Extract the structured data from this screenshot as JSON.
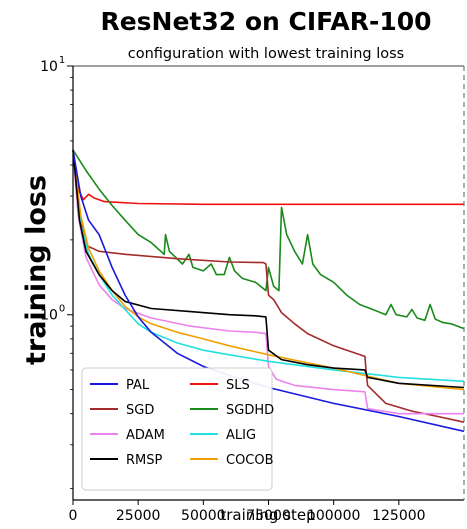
{
  "chart_data": {
    "type": "line",
    "title": "ResNet32 on CIFAR-100",
    "subtitle": "configuration with lowest training loss",
    "xlabel": "training step",
    "ylabel": "training loss",
    "yscale": "log",
    "xlim": [
      0,
      150000
    ],
    "ylim": [
      0.18,
      10
    ],
    "xticks": [
      {
        "value": 0,
        "label": "0"
      },
      {
        "value": 25000,
        "label": "25000"
      },
      {
        "value": 50000,
        "label": "50000"
      },
      {
        "value": 75000,
        "label": "75000"
      },
      {
        "value": 100000,
        "label": "100000"
      },
      {
        "value": 125000,
        "label": "125000"
      }
    ],
    "yticks": [
      {
        "value": 1,
        "base": "10",
        "exp": "0"
      },
      {
        "value": 10,
        "base": "10",
        "exp": "1"
      }
    ],
    "grid": false,
    "legend_position": "bottom-left",
    "legend_columns": 2,
    "end_marker_x": 150000,
    "series": [
      {
        "name": "PAL",
        "color": "#1a1adc",
        "points": [
          [
            0,
            4.6
          ],
          [
            3000,
            3.0
          ],
          [
            6000,
            2.4
          ],
          [
            10000,
            2.1
          ],
          [
            15000,
            1.55
          ],
          [
            20000,
            1.2
          ],
          [
            25000,
            0.98
          ],
          [
            30000,
            0.85
          ],
          [
            40000,
            0.7
          ],
          [
            50000,
            0.62
          ],
          [
            60000,
            0.57
          ],
          [
            75000,
            0.51
          ],
          [
            100000,
            0.44
          ],
          [
            125000,
            0.39
          ],
          [
            150000,
            0.34
          ]
        ]
      },
      {
        "name": "SGD",
        "color": "#a52a2a",
        "points": [
          [
            0,
            4.6
          ],
          [
            2500,
            2.5
          ],
          [
            5000,
            1.9
          ],
          [
            10000,
            1.8
          ],
          [
            20000,
            1.75
          ],
          [
            40000,
            1.68
          ],
          [
            60000,
            1.63
          ],
          [
            73000,
            1.62
          ],
          [
            74000,
            1.6
          ],
          [
            75000,
            1.2
          ],
          [
            77000,
            1.15
          ],
          [
            80000,
            1.02
          ],
          [
            85000,
            0.92
          ],
          [
            90000,
            0.84
          ],
          [
            100000,
            0.75
          ],
          [
            112000,
            0.68
          ],
          [
            112500,
            0.58
          ],
          [
            113000,
            0.52
          ],
          [
            120000,
            0.44
          ],
          [
            130000,
            0.41
          ],
          [
            140000,
            0.39
          ],
          [
            150000,
            0.37
          ]
        ]
      },
      {
        "name": "ADAM",
        "color": "#ee82ee",
        "points": [
          [
            0,
            4.6
          ],
          [
            2000,
            2.5
          ],
          [
            5000,
            1.7
          ],
          [
            10000,
            1.32
          ],
          [
            15000,
            1.15
          ],
          [
            20000,
            1.06
          ],
          [
            30000,
            0.97
          ],
          [
            45000,
            0.9
          ],
          [
            60000,
            0.86
          ],
          [
            70000,
            0.85
          ],
          [
            74000,
            0.84
          ],
          [
            75000,
            0.62
          ],
          [
            78000,
            0.55
          ],
          [
            85000,
            0.52
          ],
          [
            100000,
            0.5
          ],
          [
            112000,
            0.49
          ],
          [
            113000,
            0.42
          ],
          [
            125000,
            0.4
          ],
          [
            150000,
            0.4
          ]
        ]
      },
      {
        "name": "RMSP",
        "color": "#000000",
        "points": [
          [
            0,
            4.6
          ],
          [
            2500,
            2.4
          ],
          [
            5000,
            1.8
          ],
          [
            10000,
            1.45
          ],
          [
            15000,
            1.25
          ],
          [
            20000,
            1.13
          ],
          [
            30000,
            1.06
          ],
          [
            45000,
            1.03
          ],
          [
            60000,
            1.0
          ],
          [
            70000,
            0.99
          ],
          [
            74000,
            0.98
          ],
          [
            75000,
            0.72
          ],
          [
            80000,
            0.66
          ],
          [
            90000,
            0.63
          ],
          [
            100000,
            0.61
          ],
          [
            112000,
            0.6
          ],
          [
            113000,
            0.56
          ],
          [
            125000,
            0.53
          ],
          [
            150000,
            0.51
          ]
        ]
      },
      {
        "name": "SLS",
        "color": "#ee1111",
        "points": [
          [
            0,
            4.4
          ],
          [
            2000,
            3.2
          ],
          [
            4000,
            2.9
          ],
          [
            6000,
            3.05
          ],
          [
            8000,
            2.95
          ],
          [
            12000,
            2.85
          ],
          [
            25000,
            2.8
          ],
          [
            50000,
            2.78
          ],
          [
            75000,
            2.78
          ],
          [
            100000,
            2.78
          ],
          [
            125000,
            2.78
          ],
          [
            150000,
            2.78
          ]
        ]
      },
      {
        "name": "SGDHD",
        "color": "#1a8a1a",
        "points": [
          [
            0,
            4.6
          ],
          [
            5000,
            3.8
          ],
          [
            10000,
            3.2
          ],
          [
            15000,
            2.75
          ],
          [
            20000,
            2.4
          ],
          [
            25000,
            2.1
          ],
          [
            30000,
            1.95
          ],
          [
            35000,
            1.75
          ],
          [
            35500,
            2.1
          ],
          [
            37000,
            1.8
          ],
          [
            42000,
            1.6
          ],
          [
            44500,
            1.75
          ],
          [
            46000,
            1.55
          ],
          [
            50000,
            1.5
          ],
          [
            53000,
            1.6
          ],
          [
            55000,
            1.45
          ],
          [
            58000,
            1.45
          ],
          [
            60000,
            1.7
          ],
          [
            62000,
            1.5
          ],
          [
            65000,
            1.4
          ],
          [
            70000,
            1.35
          ],
          [
            74000,
            1.25
          ],
          [
            75000,
            1.55
          ],
          [
            77000,
            1.3
          ],
          [
            79000,
            1.25
          ],
          [
            80000,
            2.7
          ],
          [
            82000,
            2.1
          ],
          [
            85000,
            1.8
          ],
          [
            88000,
            1.6
          ],
          [
            90000,
            2.1
          ],
          [
            92000,
            1.6
          ],
          [
            95000,
            1.45
          ],
          [
            100000,
            1.35
          ],
          [
            105000,
            1.2
          ],
          [
            110000,
            1.1
          ],
          [
            115000,
            1.05
          ],
          [
            120000,
            1.0
          ],
          [
            122000,
            1.1
          ],
          [
            124000,
            1.0
          ],
          [
            128000,
            0.98
          ],
          [
            130000,
            1.05
          ],
          [
            132000,
            0.97
          ],
          [
            135000,
            0.95
          ],
          [
            137000,
            1.1
          ],
          [
            139000,
            0.96
          ],
          [
            142000,
            0.93
          ],
          [
            145000,
            0.92
          ],
          [
            150000,
            0.88
          ]
        ]
      },
      {
        "name": "ALIG",
        "color": "#22e0e0",
        "points": [
          [
            0,
            4.6
          ],
          [
            3000,
            2.3
          ],
          [
            6000,
            1.75
          ],
          [
            10000,
            1.45
          ],
          [
            15000,
            1.2
          ],
          [
            20000,
            1.05
          ],
          [
            25000,
            0.92
          ],
          [
            30000,
            0.85
          ],
          [
            40000,
            0.77
          ],
          [
            50000,
            0.72
          ],
          [
            60000,
            0.69
          ],
          [
            75000,
            0.65
          ],
          [
            100000,
            0.6
          ],
          [
            125000,
            0.56
          ],
          [
            150000,
            0.54
          ]
        ]
      },
      {
        "name": "COCOB",
        "color": "#f0a000",
        "points": [
          [
            0,
            4.6
          ],
          [
            3000,
            2.5
          ],
          [
            6000,
            1.85
          ],
          [
            10000,
            1.5
          ],
          [
            15000,
            1.25
          ],
          [
            20000,
            1.08
          ],
          [
            25000,
            0.98
          ],
          [
            30000,
            0.92
          ],
          [
            40000,
            0.85
          ],
          [
            50000,
            0.8
          ],
          [
            60000,
            0.75
          ],
          [
            75000,
            0.69
          ],
          [
            100000,
            0.61
          ],
          [
            112000,
            0.57
          ],
          [
            125000,
            0.53
          ],
          [
            150000,
            0.5
          ]
        ]
      }
    ]
  }
}
